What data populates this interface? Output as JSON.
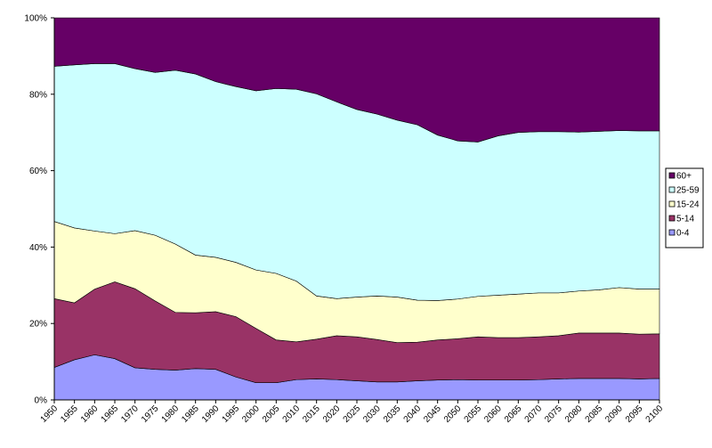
{
  "chart_data": {
    "type": "area",
    "stacked": "percent",
    "categories": [
      "1950",
      "1955",
      "1960",
      "1965",
      "1970",
      "1975",
      "1980",
      "1985",
      "1990",
      "1995",
      "2000",
      "2005",
      "2010",
      "2015",
      "2020",
      "2025",
      "2030",
      "2035",
      "2040",
      "2045",
      "2050",
      "2055",
      "2060",
      "2065",
      "2070",
      "2075",
      "2080",
      "2085",
      "2090",
      "2095",
      "2100"
    ],
    "yticks": [
      "0%",
      "20%",
      "40%",
      "60%",
      "80%",
      "100%"
    ],
    "ylim": [
      0,
      100
    ],
    "legend_position": "right",
    "series": [
      {
        "name": "0-4",
        "color": "#9999ff",
        "values": [
          8.5,
          10.5,
          11.8,
          10.8,
          8.4,
          8.0,
          7.8,
          8.2,
          8.0,
          6.0,
          4.5,
          4.5,
          5.3,
          5.5,
          5.3,
          5.0,
          4.7,
          4.7,
          5.0,
          5.2,
          5.3,
          5.2,
          5.2,
          5.2,
          5.3,
          5.5,
          5.6,
          5.6,
          5.6,
          5.5,
          5.6
        ]
      },
      {
        "name": "5-14",
        "color": "#993366",
        "values": [
          18.0,
          14.9,
          17.2,
          20.1,
          20.7,
          17.9,
          15.1,
          14.6,
          15.1,
          15.8,
          14.2,
          11.2,
          9.9,
          10.4,
          11.5,
          11.5,
          11.1,
          10.3,
          10.1,
          10.5,
          10.7,
          11.3,
          11.1,
          11.1,
          11.2,
          11.3,
          11.9,
          11.9,
          11.9,
          11.7,
          11.7
        ]
      },
      {
        "name": "15-24",
        "color": "#ffffcc",
        "values": [
          20.2,
          19.6,
          15.2,
          12.6,
          15.2,
          17.2,
          17.9,
          15.1,
          14.2,
          14.2,
          15.3,
          17.4,
          15.9,
          11.3,
          9.7,
          10.4,
          11.4,
          11.9,
          11.0,
          10.3,
          10.4,
          10.6,
          11.1,
          11.4,
          11.5,
          11.2,
          11.0,
          11.3,
          11.9,
          11.8,
          11.7
        ]
      },
      {
        "name": "25-59",
        "color": "#ccffff",
        "values": [
          40.6,
          42.7,
          43.8,
          44.5,
          42.4,
          42.6,
          45.5,
          47.4,
          46.0,
          46.0,
          46.9,
          48.4,
          50.2,
          52.9,
          51.5,
          49.1,
          47.6,
          46.3,
          45.9,
          43.3,
          41.4,
          40.4,
          41.7,
          42.3,
          42.2,
          42.2,
          41.6,
          41.5,
          41.1,
          41.4,
          41.4
        ]
      },
      {
        "name": "60+",
        "color": "#660066",
        "values": [
          12.7,
          12.3,
          12.0,
          12.0,
          13.3,
          14.3,
          13.7,
          14.7,
          16.7,
          18.0,
          19.1,
          18.5,
          18.7,
          19.9,
          22.0,
          24.0,
          25.2,
          26.8,
          28.0,
          30.7,
          32.2,
          32.5,
          30.9,
          30.0,
          29.8,
          29.8,
          29.9,
          29.7,
          29.5,
          29.6,
          29.6
        ]
      }
    ]
  }
}
